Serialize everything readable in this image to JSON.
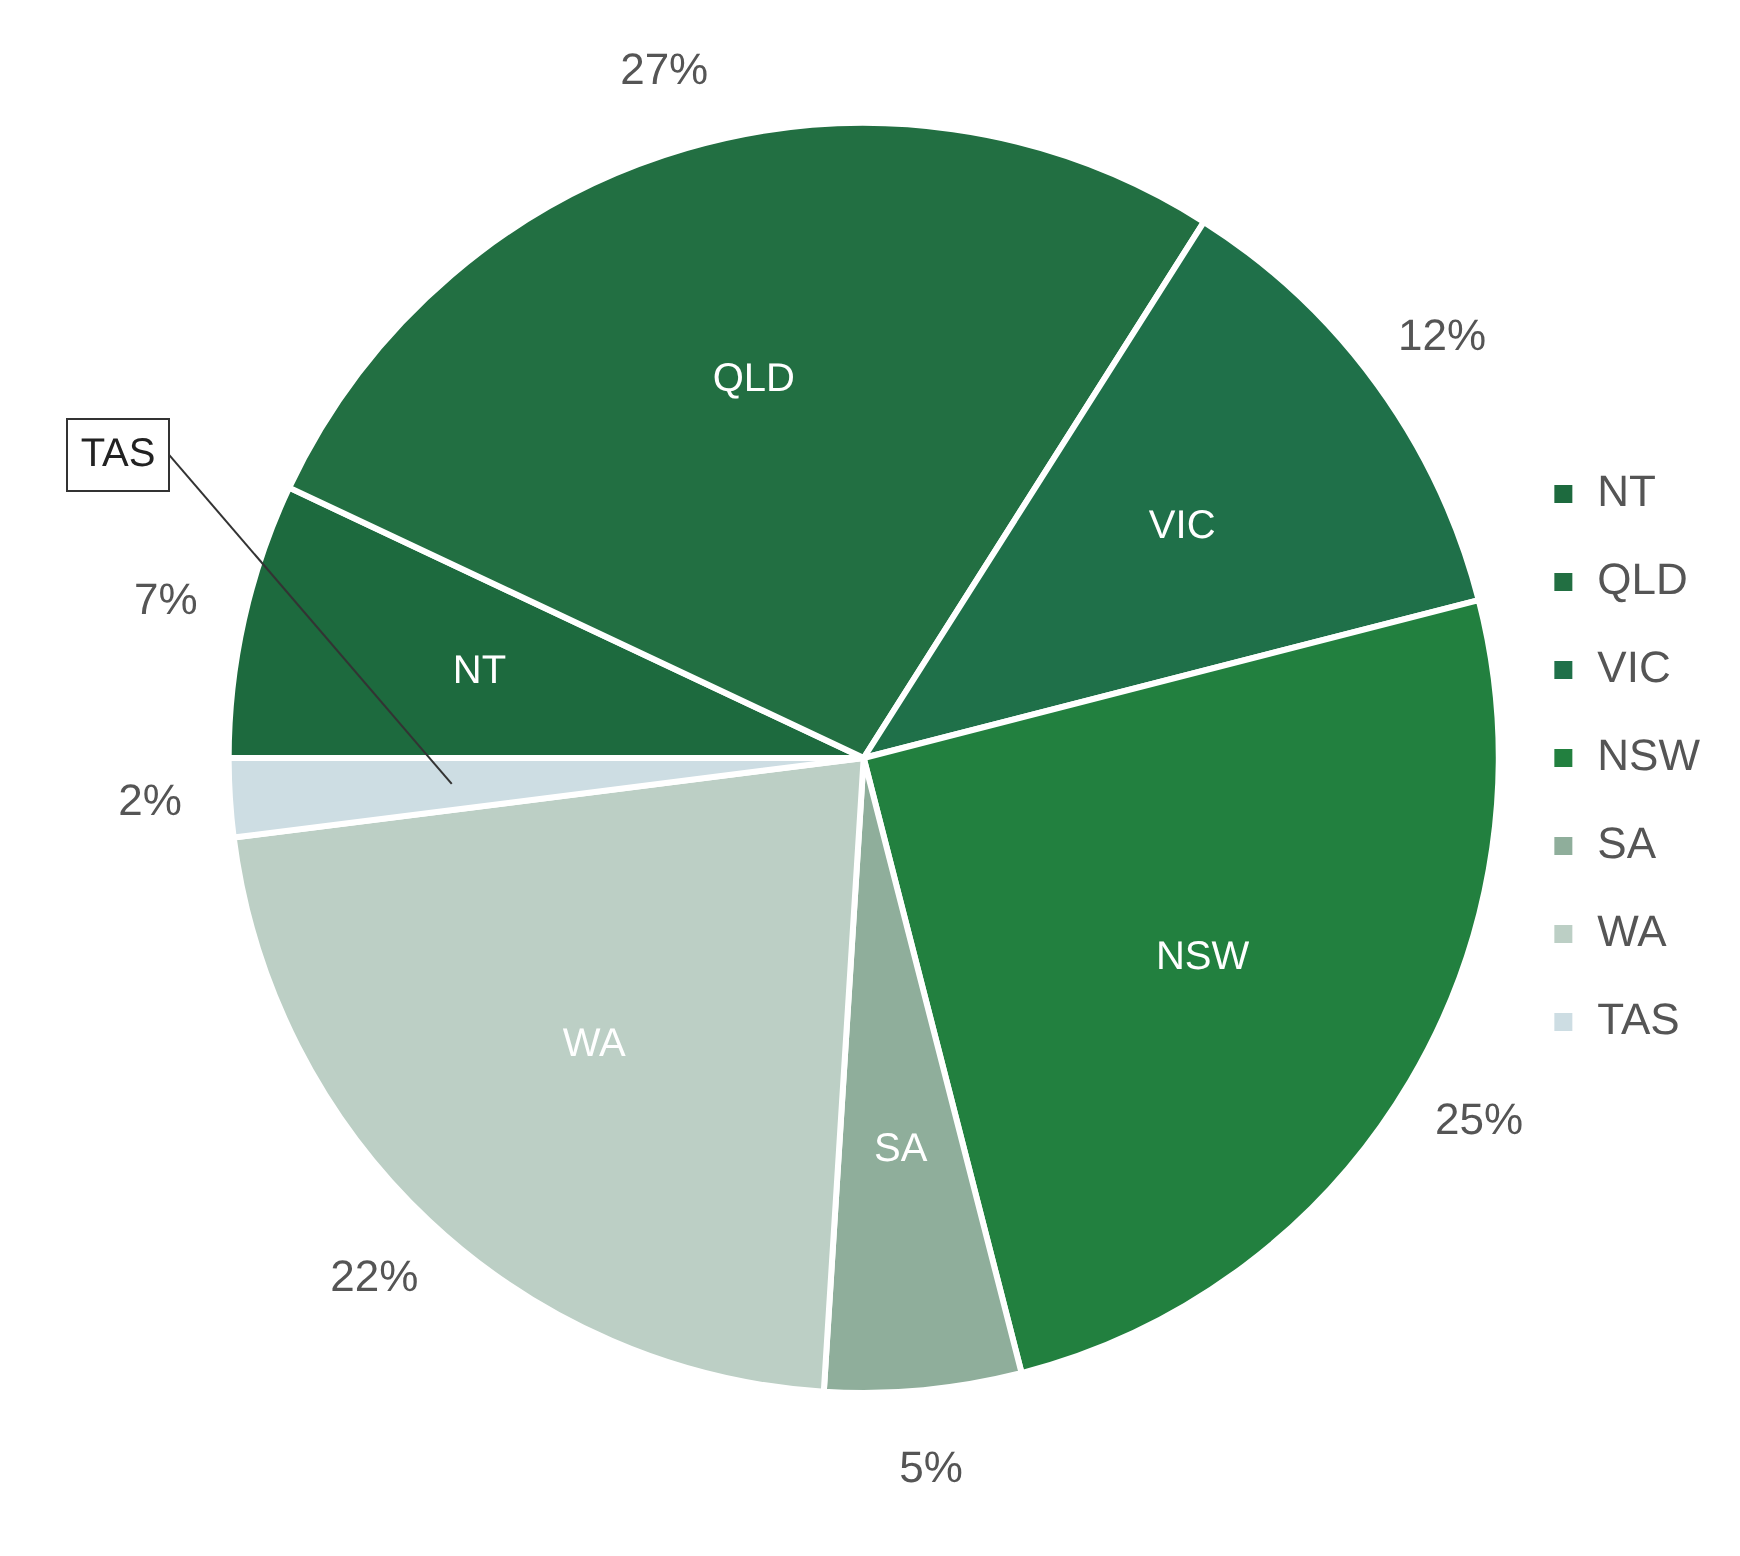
{
  "chart_data": {
    "type": "pie",
    "categories": [
      "NT",
      "QLD",
      "VIC",
      "NSW",
      "SA",
      "WA",
      "TAS"
    ],
    "values": [
      7,
      27,
      12,
      25,
      5,
      22,
      2
    ],
    "value_labels": [
      "7%",
      "27%",
      "12%",
      "25%",
      "5%",
      "22%",
      "2%"
    ],
    "colors": [
      "#1d6a3e",
      "#226f42",
      "#1f7049",
      "#22803f",
      "#8fae9b",
      "#bccfc5",
      "#cddde3"
    ],
    "legend": "right"
  }
}
